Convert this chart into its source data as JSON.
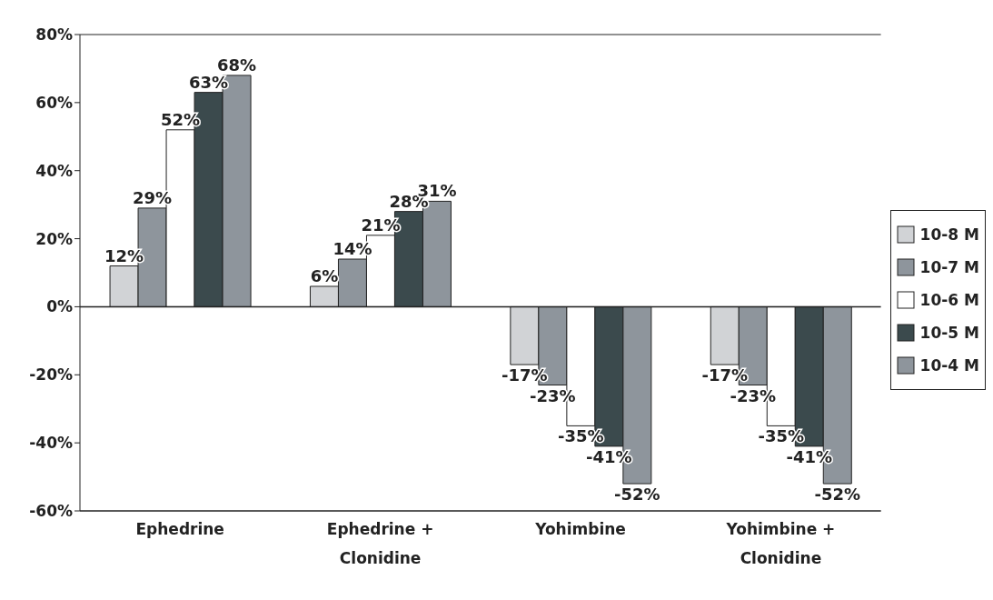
{
  "chart_data": {
    "type": "bar",
    "categories": [
      "Ephedrine",
      "Ephedrine + Clonidine",
      "Yohimbine",
      "Yohimbine + Clonidine"
    ],
    "series": [
      {
        "name": "10-8 M",
        "color": "#d1d3d6",
        "values": [
          12,
          6,
          -17,
          -17
        ],
        "value_labels": [
          "12%",
          "6%",
          "-17%",
          "-17%"
        ]
      },
      {
        "name": "10-7 M",
        "color": "#8e959c",
        "values": [
          29,
          14,
          -23,
          -23
        ],
        "value_labels": [
          "29%",
          "14%",
          "-23%",
          "-23%"
        ]
      },
      {
        "name": "10-6 M",
        "color": "#ffffff",
        "values": [
          52,
          21,
          -35,
          -35
        ],
        "value_labels": [
          "52%",
          "21%",
          "-35%",
          "-35%"
        ]
      },
      {
        "name": "10-5 M",
        "color": "#3b4a4d",
        "values": [
          63,
          28,
          -41,
          -41
        ],
        "value_labels": [
          "63%",
          "28%",
          "-41%",
          "-41%"
        ]
      },
      {
        "name": "10-4 M",
        "color": "#8e959c",
        "values": [
          68,
          31,
          -52,
          -52
        ],
        "value_labels": [
          "68%",
          "31%",
          "-52%",
          "-52%"
        ]
      }
    ],
    "ylim": [
      -60,
      80
    ],
    "yticks": [
      {
        "value": -60,
        "label": "-60%"
      },
      {
        "value": -40,
        "label": "-40%"
      },
      {
        "value": -20,
        "label": "-20%"
      },
      {
        "value": 0,
        "label": "0%"
      },
      {
        "value": 20,
        "label": "20%"
      },
      {
        "value": 40,
        "label": "40%"
      },
      {
        "value": 60,
        "label": "60%"
      },
      {
        "value": 80,
        "label": "80%"
      }
    ],
    "grid": "y",
    "legend": "right"
  }
}
